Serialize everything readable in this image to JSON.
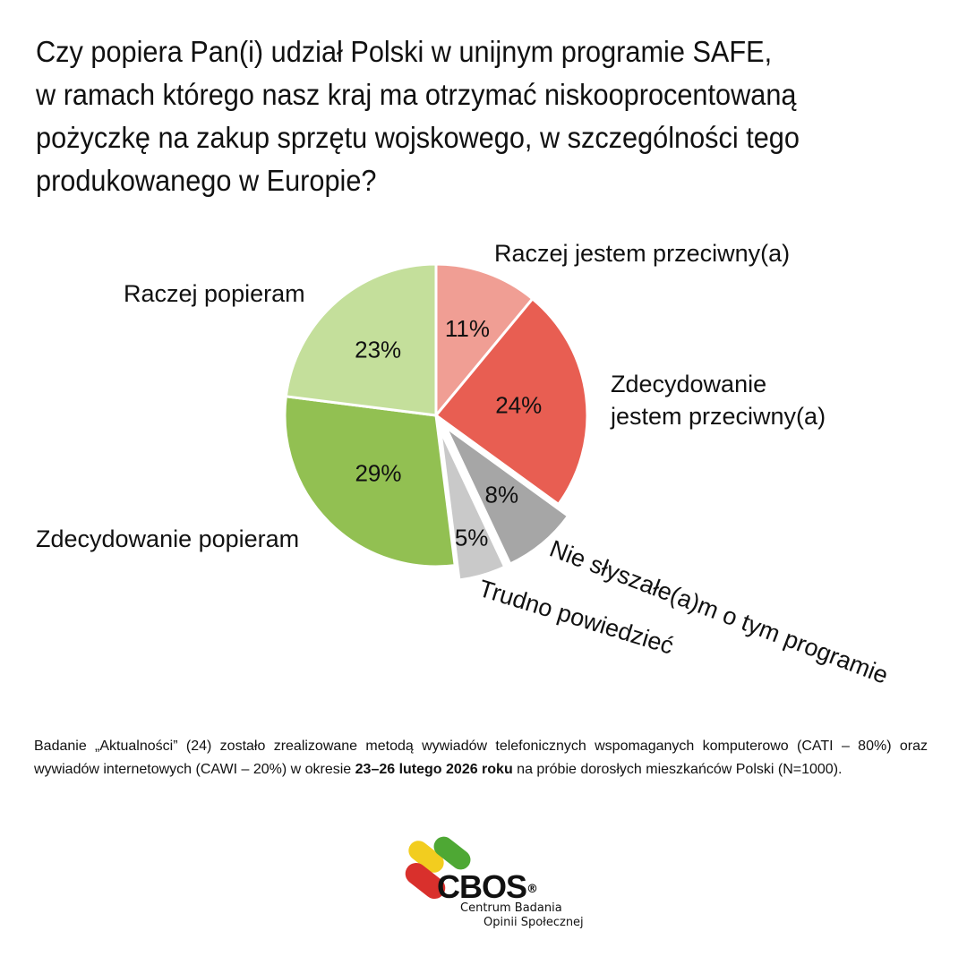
{
  "title_lines": [
    "Czy popiera Pan(i) udział Polski w unijnym programie SAFE,",
    "w ramach którego nasz kraj ma otrzymać niskooprocentowaną",
    "pożyczkę na zakup sprzętu wojskowego, w szczególności tego",
    "produkowanego w Europie?"
  ],
  "chart_data": {
    "type": "pie",
    "slices": [
      {
        "label": "Raczej jestem przeciwny(a)",
        "label_lines": [
          "Raczej jestem przeciwny(a)"
        ],
        "value": 11,
        "value_label": "11%",
        "color": "#f09e94",
        "exploded": false
      },
      {
        "label": "Zdecydowanie jestem przeciwny(a)",
        "label_lines": [
          "Zdecydowanie",
          "jestem przeciwny(a)"
        ],
        "value": 24,
        "value_label": "24%",
        "color": "#e85e52",
        "exploded": false
      },
      {
        "label": "Nie słyszałe(a)m o tym programie",
        "label_lines": [
          "Nie słyszałe(a)m o tym programie"
        ],
        "value": 8,
        "value_label": "8%",
        "color": "#a6a6a6",
        "exploded": true
      },
      {
        "label": "Trudno powiedzieć",
        "label_lines": [
          "Trudno powiedzieć"
        ],
        "value": 5,
        "value_label": "5%",
        "color": "#c9c9c9",
        "exploded": true
      },
      {
        "label": "Zdecydowanie popieram",
        "label_lines": [
          "Zdecydowanie popieram"
        ],
        "value": 29,
        "value_label": "29%",
        "color": "#92c052",
        "exploded": false
      },
      {
        "label": "Raczej popieram",
        "label_lines": [
          "Raczej popieram"
        ],
        "value": 23,
        "value_label": "23%",
        "color": "#c4df9b",
        "exploded": false
      }
    ]
  },
  "note": {
    "before": "Badanie „Aktualności” (24) zostało zrealizowane metodą wywiadów telefonicznych wspomaganych komputerowo (CATI – 80%) oraz wywiadów internetowych (CAWI – 20%) w okresie ",
    "bold": "23–26 lutego 2026 roku",
    "after": " na próbie dorosłych mieszkańców Polski (N=1000)."
  },
  "logo": {
    "word": "CBOS",
    "reg": "®",
    "subtitle_1": "Centrum Badania",
    "subtitle_2": "Opinii Społecznej",
    "colors": [
      "#f2cd1f",
      "#4ea834",
      "#d9302c"
    ]
  }
}
